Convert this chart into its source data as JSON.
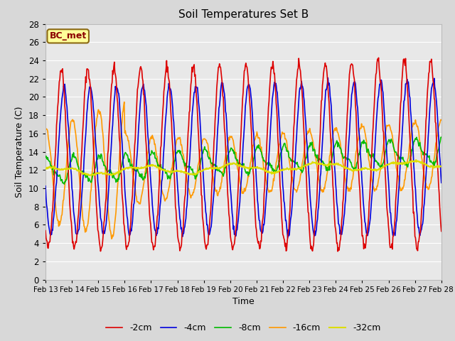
{
  "title": "Soil Temperatures Set B",
  "xlabel": "Time",
  "ylabel": "Soil Temperature (C)",
  "annotation": "BC_met",
  "ylim": [
    0,
    28
  ],
  "yticks": [
    0,
    2,
    4,
    6,
    8,
    10,
    12,
    14,
    16,
    18,
    20,
    22,
    24,
    26,
    28
  ],
  "date_labels": [
    "Feb 13",
    "Feb 14",
    "Feb 15",
    "Feb 16",
    "Feb 17",
    "Feb 18",
    "Feb 19",
    "Feb 20",
    "Feb 21",
    "Feb 22",
    "Feb 23",
    "Feb 24",
    "Feb 25",
    "Feb 26",
    "Feb 27",
    "Feb 28"
  ],
  "series": {
    "-2cm": {
      "color": "#dd0000",
      "lw": 1.2
    },
    "-4cm": {
      "color": "#0000dd",
      "lw": 1.2
    },
    "-8cm": {
      "color": "#00bb00",
      "lw": 1.2
    },
    "-16cm": {
      "color": "#ff9900",
      "lw": 1.2
    },
    "-32cm": {
      "color": "#dddd00",
      "lw": 1.5
    }
  },
  "outer_bg": "#d8d8d8",
  "plot_bg": "#e8e8e8",
  "grid_color": "#ffffff",
  "figsize": [
    6.4,
    4.8
  ],
  "dpi": 100
}
